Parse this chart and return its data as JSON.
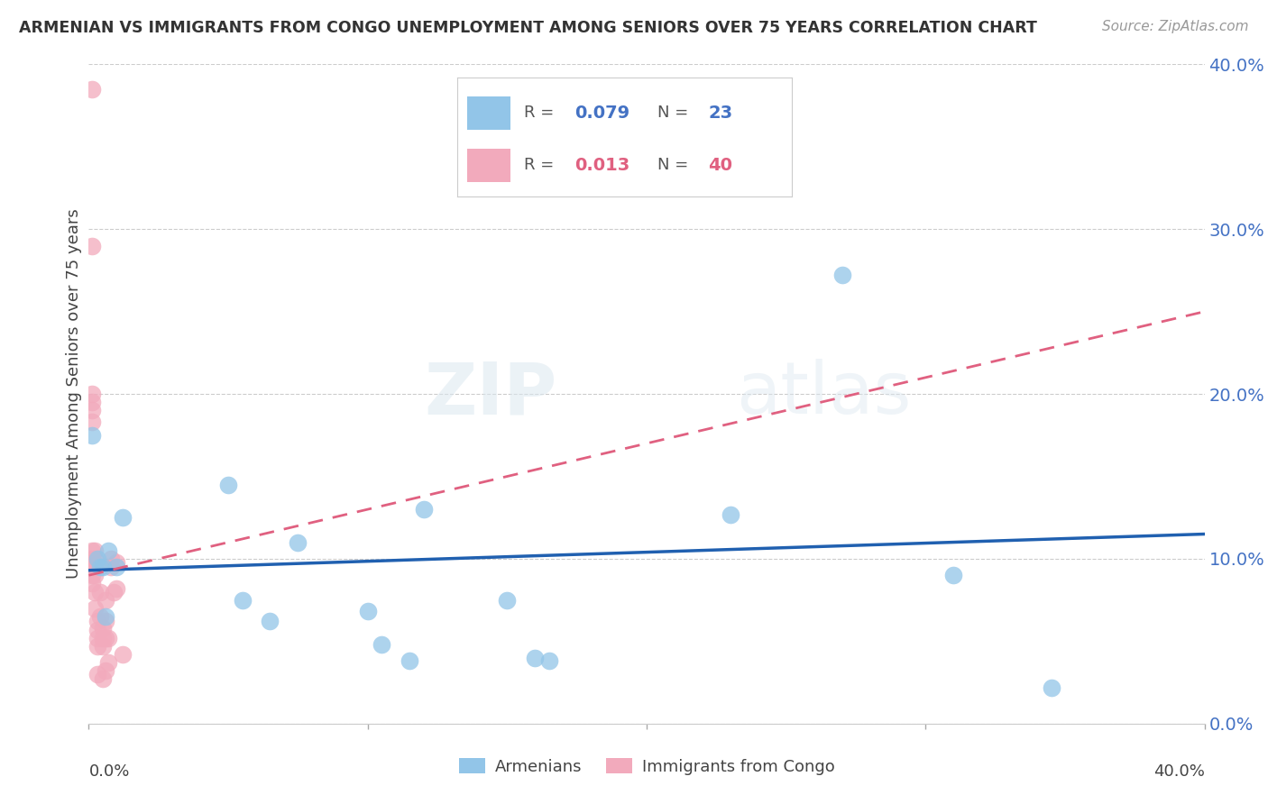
{
  "title": "ARMENIAN VS IMMIGRANTS FROM CONGO UNEMPLOYMENT AMONG SENIORS OVER 75 YEARS CORRELATION CHART",
  "source": "Source: ZipAtlas.com",
  "ylabel": "Unemployment Among Seniors over 75 years",
  "ytick_labels": [
    "0.0%",
    "10.0%",
    "20.0%",
    "30.0%",
    "40.0%"
  ],
  "ytick_values": [
    0.0,
    0.1,
    0.2,
    0.3,
    0.4
  ],
  "xlim": [
    0.0,
    0.4
  ],
  "ylim": [
    0.0,
    0.4
  ],
  "legend1_R": "0.079",
  "legend1_N": "23",
  "legend2_R": "0.013",
  "legend2_N": "40",
  "blue_color": "#92C5E8",
  "pink_color": "#F2AABC",
  "blue_line_color": "#2060B0",
  "pink_line_color": "#E06080",
  "armenians_x": [
    0.001,
    0.003,
    0.004,
    0.005,
    0.006,
    0.007,
    0.01,
    0.012,
    0.05,
    0.055,
    0.065,
    0.075,
    0.1,
    0.105,
    0.115,
    0.12,
    0.15,
    0.16,
    0.165,
    0.23,
    0.27,
    0.31,
    0.345
  ],
  "armenians_y": [
    0.175,
    0.1,
    0.095,
    0.095,
    0.065,
    0.105,
    0.095,
    0.125,
    0.145,
    0.075,
    0.062,
    0.11,
    0.068,
    0.048,
    0.038,
    0.13,
    0.075,
    0.04,
    0.038,
    0.127,
    0.272,
    0.09,
    0.022
  ],
  "congo_x": [
    0.001,
    0.001,
    0.001,
    0.001,
    0.001,
    0.001,
    0.001,
    0.001,
    0.001,
    0.001,
    0.001,
    0.002,
    0.002,
    0.002,
    0.002,
    0.002,
    0.002,
    0.003,
    0.003,
    0.003,
    0.003,
    0.003,
    0.004,
    0.004,
    0.005,
    0.005,
    0.005,
    0.005,
    0.006,
    0.006,
    0.006,
    0.006,
    0.007,
    0.007,
    0.008,
    0.008,
    0.009,
    0.01,
    0.01,
    0.012
  ],
  "congo_y": [
    0.385,
    0.29,
    0.2,
    0.195,
    0.19,
    0.183,
    0.105,
    0.1,
    0.095,
    0.09,
    0.085,
    0.105,
    0.1,
    0.095,
    0.09,
    0.08,
    0.07,
    0.062,
    0.057,
    0.052,
    0.047,
    0.03,
    0.08,
    0.065,
    0.058,
    0.052,
    0.047,
    0.027,
    0.075,
    0.062,
    0.052,
    0.032,
    0.052,
    0.037,
    0.1,
    0.095,
    0.08,
    0.098,
    0.082,
    0.042
  ],
  "arm_line_x0": 0.0,
  "arm_line_x1": 0.4,
  "arm_line_y0": 0.093,
  "arm_line_y1": 0.115,
  "congo_line_x0": 0.0,
  "congo_line_x1": 0.4,
  "congo_line_y0": 0.09,
  "congo_line_y1": 0.25
}
